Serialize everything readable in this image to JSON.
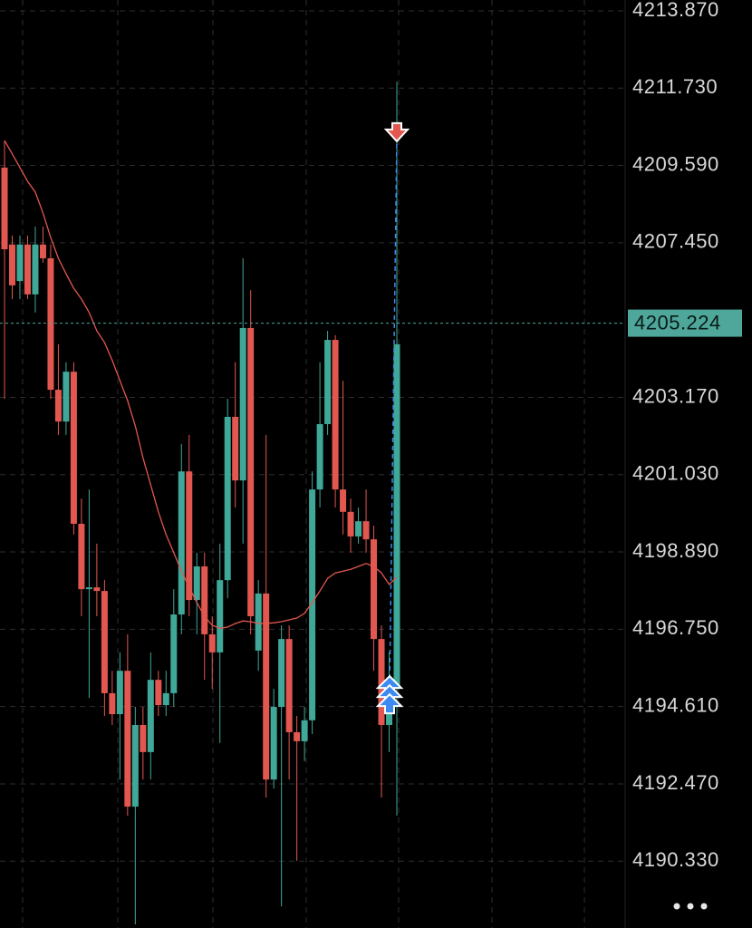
{
  "chart_data": {
    "type": "candlestick",
    "up_color": "#3fa898",
    "down_color": "#e2574f",
    "open": [
      4209.53,
      4207.4,
      4206.39,
      4207.4,
      4206.02,
      4207.4,
      4207.02,
      4203.38,
      4202.5,
      4203.88,
      4199.67,
      4197.86,
      4197.91,
      4197.81,
      4194.98,
      4194.4,
      4195.6,
      4191.84,
      4194.1,
      4193.35,
      4195.35,
      4194.65,
      4194.98,
      4197.16,
      4201.12,
      4197.56,
      4198.49,
      4196.61,
      4196.11,
      4198.11,
      4202.63,
      4200.87,
      4205.09,
      4196.16,
      4197.74,
      4192.59,
      4194.6,
      4196.48,
      4193.9,
      4193.65,
      4194.23,
      4200.62,
      4202.43,
      4204.76,
      4200.62,
      4200.0,
      4199.32,
      4199.74,
      4199.24,
      4196.48,
      4194.1,
      4195.1
    ],
    "high": [
      4210.28,
      4207.65,
      4207.65,
      4207.65,
      4207.9,
      4207.9,
      4207.4,
      4204.64,
      4204.14,
      4204.14,
      4200.37,
      4200.62,
      4199.12,
      4198.11,
      4195.6,
      4196.11,
      4196.61,
      4194.6,
      4194.6,
      4196.11,
      4195.6,
      4195.6,
      4197.86,
      4201.88,
      4202.13,
      4198.87,
      4198.87,
      4197.11,
      4199.12,
      4203.13,
      4204.14,
      4207.02,
      4206.14,
      4198.11,
      4202.13,
      4195.1,
      4196.86,
      4196.86,
      4194.35,
      4194.6,
      4201.12,
      4204.14,
      4205.01,
      4204.89,
      4203.63,
      4200.37,
      4200.12,
      4200.62,
      4199.62,
      4196.86,
      4196.11,
      4211.91
    ],
    "low": [
      4203.13,
      4205.89,
      4205.89,
      4205.89,
      4205.52,
      4206.9,
      4203.13,
      4202.13,
      4202.13,
      4199.37,
      4197.11,
      4194.85,
      4197.11,
      4194.35,
      4194.1,
      4192.59,
      4191.59,
      4188.58,
      4192.59,
      4192.59,
      4194.35,
      4194.35,
      4194.6,
      4196.61,
      4197.11,
      4196.61,
      4195.35,
      4195.1,
      4193.6,
      4197.61,
      4200.12,
      4199.12,
      4196.61,
      4195.6,
      4192.09,
      4192.34,
      4189.08,
      4192.59,
      4190.34,
      4193.1,
      4193.85,
      4200.12,
      4202.13,
      4200.12,
      4199.37,
      4198.87,
      4199.12,
      4198.87,
      4195.6,
      4192.09,
      4193.35,
      4191.59
    ],
    "close": [
      4207.27,
      4206.27,
      4207.4,
      4206.02,
      4207.4,
      4207.02,
      4203.38,
      4202.5,
      4203.88,
      4199.67,
      4197.86,
      4197.91,
      4197.81,
      4194.98,
      4194.4,
      4195.6,
      4191.84,
      4194.1,
      4193.35,
      4195.35,
      4194.65,
      4194.98,
      4197.16,
      4201.12,
      4197.56,
      4198.49,
      4196.61,
      4196.11,
      4198.11,
      4202.63,
      4200.87,
      4205.09,
      4197.11,
      4197.74,
      4192.59,
      4194.6,
      4196.48,
      4193.9,
      4193.65,
      4194.23,
      4200.62,
      4202.43,
      4204.76,
      4200.62,
      4200.0,
      4199.32,
      4199.74,
      4199.24,
      4196.48,
      4194.1,
      4195.1,
      4204.64
    ],
    "ma": {
      "color": "#e2574f",
      "values": [
        4210.28,
        4209.91,
        4209.53,
        4209.15,
        4208.85,
        4208.27,
        4207.6,
        4207.02,
        4206.59,
        4206.19,
        4205.89,
        4205.52,
        4205.01,
        4204.69,
        4204.19,
        4203.63,
        4203.08,
        4202.38,
        4201.5,
        4200.75,
        4200.0,
        4199.37,
        4198.87,
        4198.36,
        4197.91,
        4197.49,
        4197.11,
        4196.86,
        4196.78,
        4196.81,
        4196.91,
        4196.98,
        4196.96,
        4196.91,
        4196.91,
        4196.93,
        4196.96,
        4197.01,
        4197.06,
        4197.19,
        4197.49,
        4197.81,
        4198.16,
        4198.31,
        4198.36,
        4198.41,
        4198.49,
        4198.57,
        4198.49,
        4198.31,
        4197.99,
        4198.19
      ]
    },
    "current_price": {
      "value": 4205.224,
      "color": "#4ea79a"
    },
    "sell_marker": {
      "value": 4210.41,
      "color": "#e2574f"
    },
    "buy_marker": {
      "value": 4195.1,
      "color": "#3d8bf0"
    },
    "ylim": [
      4188.48,
      4214.17
    ],
    "yticks": [
      {
        "value": 4213.87,
        "label": "4213.870"
      },
      {
        "value": 4211.73,
        "label": "4211.730"
      },
      {
        "value": 4209.59,
        "label": "4209.590"
      },
      {
        "value": 4207.45,
        "label": "4207.450"
      },
      {
        "value": 4203.17,
        "label": "4203.170"
      },
      {
        "value": 4201.03,
        "label": "4201.030"
      },
      {
        "value": 4198.89,
        "label": "4198.890"
      },
      {
        "value": 4196.75,
        "label": "4196.750"
      },
      {
        "value": 4194.61,
        "label": "4194.610"
      },
      {
        "value": 4192.47,
        "label": "4192.470"
      },
      {
        "value": 4190.33,
        "label": "4190.330"
      }
    ],
    "grid": true
  }
}
